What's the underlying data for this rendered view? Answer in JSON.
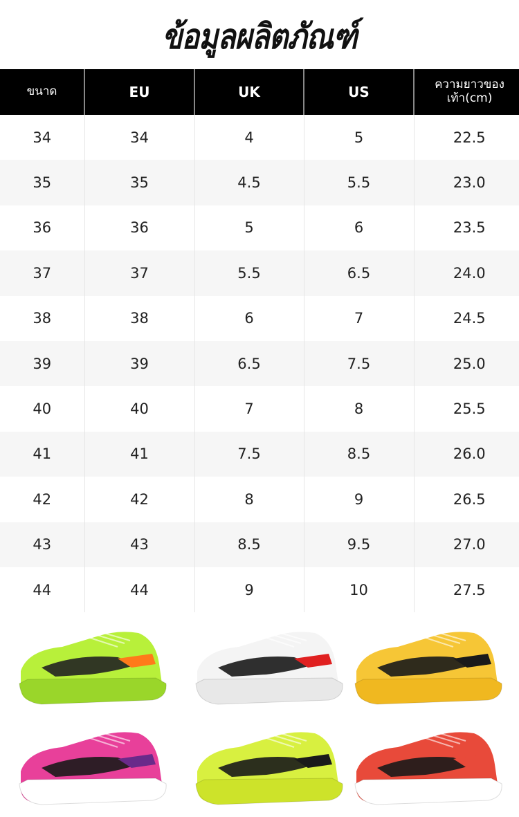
{
  "title": "ข้อมูลผลิตภัณฑ์",
  "table": {
    "headers": [
      "ขนาด",
      "EU",
      "UK",
      "US",
      "ความยาวของเท้า(cm)"
    ],
    "rows": [
      [
        "34",
        "34",
        "4",
        "5",
        "22.5"
      ],
      [
        "35",
        "35",
        "4.5",
        "5.5",
        "23.0"
      ],
      [
        "36",
        "36",
        "5",
        "6",
        "23.5"
      ],
      [
        "37",
        "37",
        "5.5",
        "6.5",
        "24.0"
      ],
      [
        "38",
        "38",
        "6",
        "7",
        "24.5"
      ],
      [
        "39",
        "39",
        "6.5",
        "7.5",
        "25.0"
      ],
      [
        "40",
        "40",
        "7",
        "8",
        "25.5"
      ],
      [
        "41",
        "41",
        "7.5",
        "8.5",
        "26.0"
      ],
      [
        "42",
        "42",
        "8",
        "9",
        "26.5"
      ],
      [
        "43",
        "43",
        "8.5",
        "9.5",
        "27.0"
      ],
      [
        "44",
        "44",
        "9",
        "10",
        "27.5"
      ]
    ]
  },
  "shoes": [
    {
      "upper": "#b8f03a",
      "sole": "#9ad62a",
      "accent": "#222222",
      "stripe": "#ff7a1a"
    },
    {
      "upper": "#f4f4f4",
      "sole": "#e8e8e8",
      "accent": "#1a1a1a",
      "stripe": "#e02020"
    },
    {
      "upper": "#f6c636",
      "sole": "#f0b820",
      "accent": "#1a1a1a",
      "stripe": "#1a1a1a"
    },
    {
      "upper": "#e8409a",
      "sole": "#ffffff",
      "accent": "#1a1a1a",
      "stripe": "#6a2a8a"
    },
    {
      "upper": "#d8f040",
      "sole": "#cde32a",
      "accent": "#1a1a1a",
      "stripe": "#1a1a1a"
    },
    {
      "upper": "#e84a3a",
      "sole": "#ffffff",
      "accent": "#1a1a1a",
      "stripe": "#e84a3a"
    }
  ]
}
